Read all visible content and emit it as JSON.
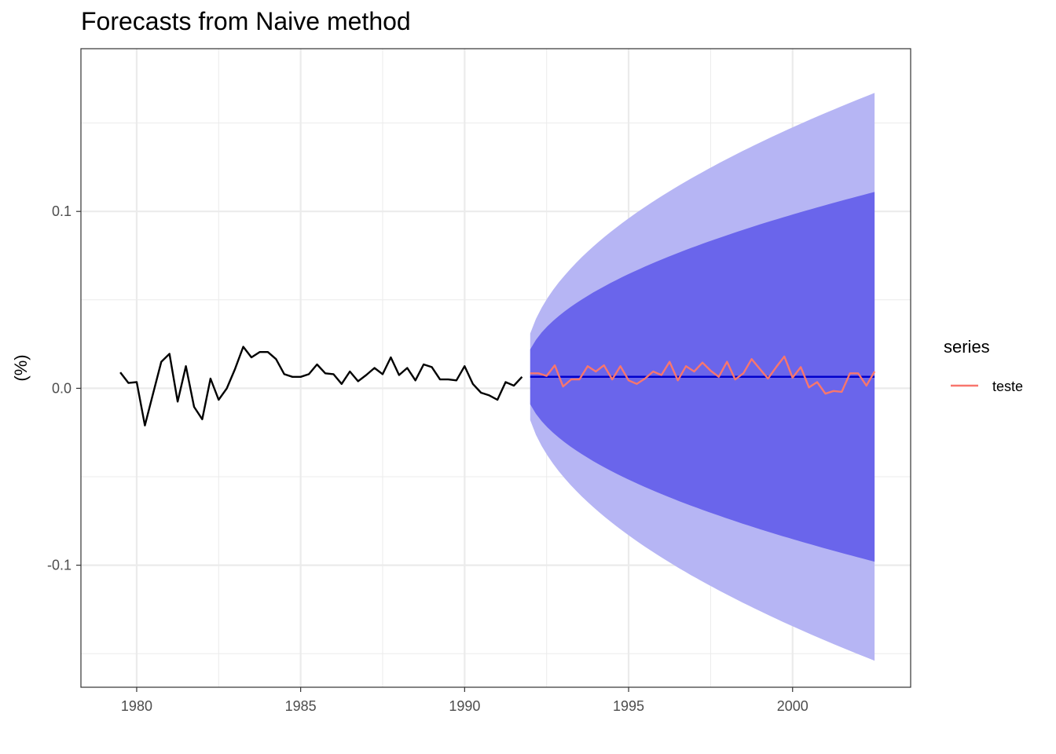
{
  "chart_data": {
    "type": "line",
    "title": "Forecasts from Naive method",
    "xlabel": "",
    "ylabel": "(%)",
    "xlim": [
      1978.3,
      2003.6
    ],
    "ylim": [
      -0.169,
      0.192
    ],
    "x_ticks": [
      1980,
      1985,
      1990,
      1995,
      2000
    ],
    "x_tick_labels": [
      "1980",
      "1985",
      "1990",
      "1995",
      "2000"
    ],
    "y_ticks": [
      -0.1,
      0.0,
      0.1
    ],
    "y_tick_labels": [
      "-0.1",
      "0.0",
      "0.1"
    ],
    "grid": true,
    "legend": {
      "title": "series",
      "position": "right",
      "entries": [
        {
          "label": "teste",
          "color": "#F8766D"
        }
      ]
    },
    "history": {
      "start": 1979.5,
      "step": 0.25,
      "color": "#000000",
      "values": [
        0.009,
        0.003,
        0.0035,
        -0.021,
        -0.003,
        0.015,
        0.0195,
        -0.0075,
        0.0125,
        -0.0105,
        -0.0175,
        0.0055,
        -0.0065,
        0.0,
        0.011,
        0.0235,
        0.0175,
        0.0205,
        0.0205,
        0.0165,
        0.008,
        0.0065,
        0.0065,
        0.008,
        0.0135,
        0.0085,
        0.008,
        0.0025,
        0.0095,
        0.004,
        0.0075,
        0.0115,
        0.008,
        0.0175,
        0.0075,
        0.0115,
        0.0045,
        0.0135,
        0.012,
        0.005,
        0.005,
        0.0045,
        0.0125,
        0.0025,
        -0.0025,
        -0.004,
        -0.0065,
        0.0035,
        0.0015,
        0.0065
      ]
    },
    "forecast": {
      "start": 1992.0,
      "end": 2002.5,
      "point": 0.0065,
      "color": "#0000CC",
      "band80": {
        "color": "#6A65EB",
        "upper_start": 0.022,
        "upper_end": 0.111,
        "lower_start": -0.009,
        "lower_end": -0.098
      },
      "band95": {
        "color": "#B6B5F4",
        "upper_start": 0.031,
        "upper_end": 0.167,
        "lower_start": -0.018,
        "lower_end": -0.154
      }
    },
    "series": [
      {
        "name": "teste",
        "color": "#F8766D",
        "start": 1992.0,
        "step": 0.25,
        "values": [
          0.0085,
          0.0085,
          0.007,
          0.013,
          0.001,
          0.005,
          0.005,
          0.0125,
          0.0095,
          0.013,
          0.005,
          0.0125,
          0.0045,
          0.0025,
          0.0055,
          0.0095,
          0.0075,
          0.015,
          0.0045,
          0.0125,
          0.0095,
          0.0145,
          0.01,
          0.0065,
          0.015,
          0.005,
          0.0085,
          0.0165,
          0.011,
          0.0055,
          0.012,
          0.018,
          0.006,
          0.012,
          0.0005,
          0.0035,
          -0.003,
          -0.0015,
          -0.002,
          0.0085,
          0.0085,
          0.0015,
          0.0095
        ]
      }
    ]
  }
}
